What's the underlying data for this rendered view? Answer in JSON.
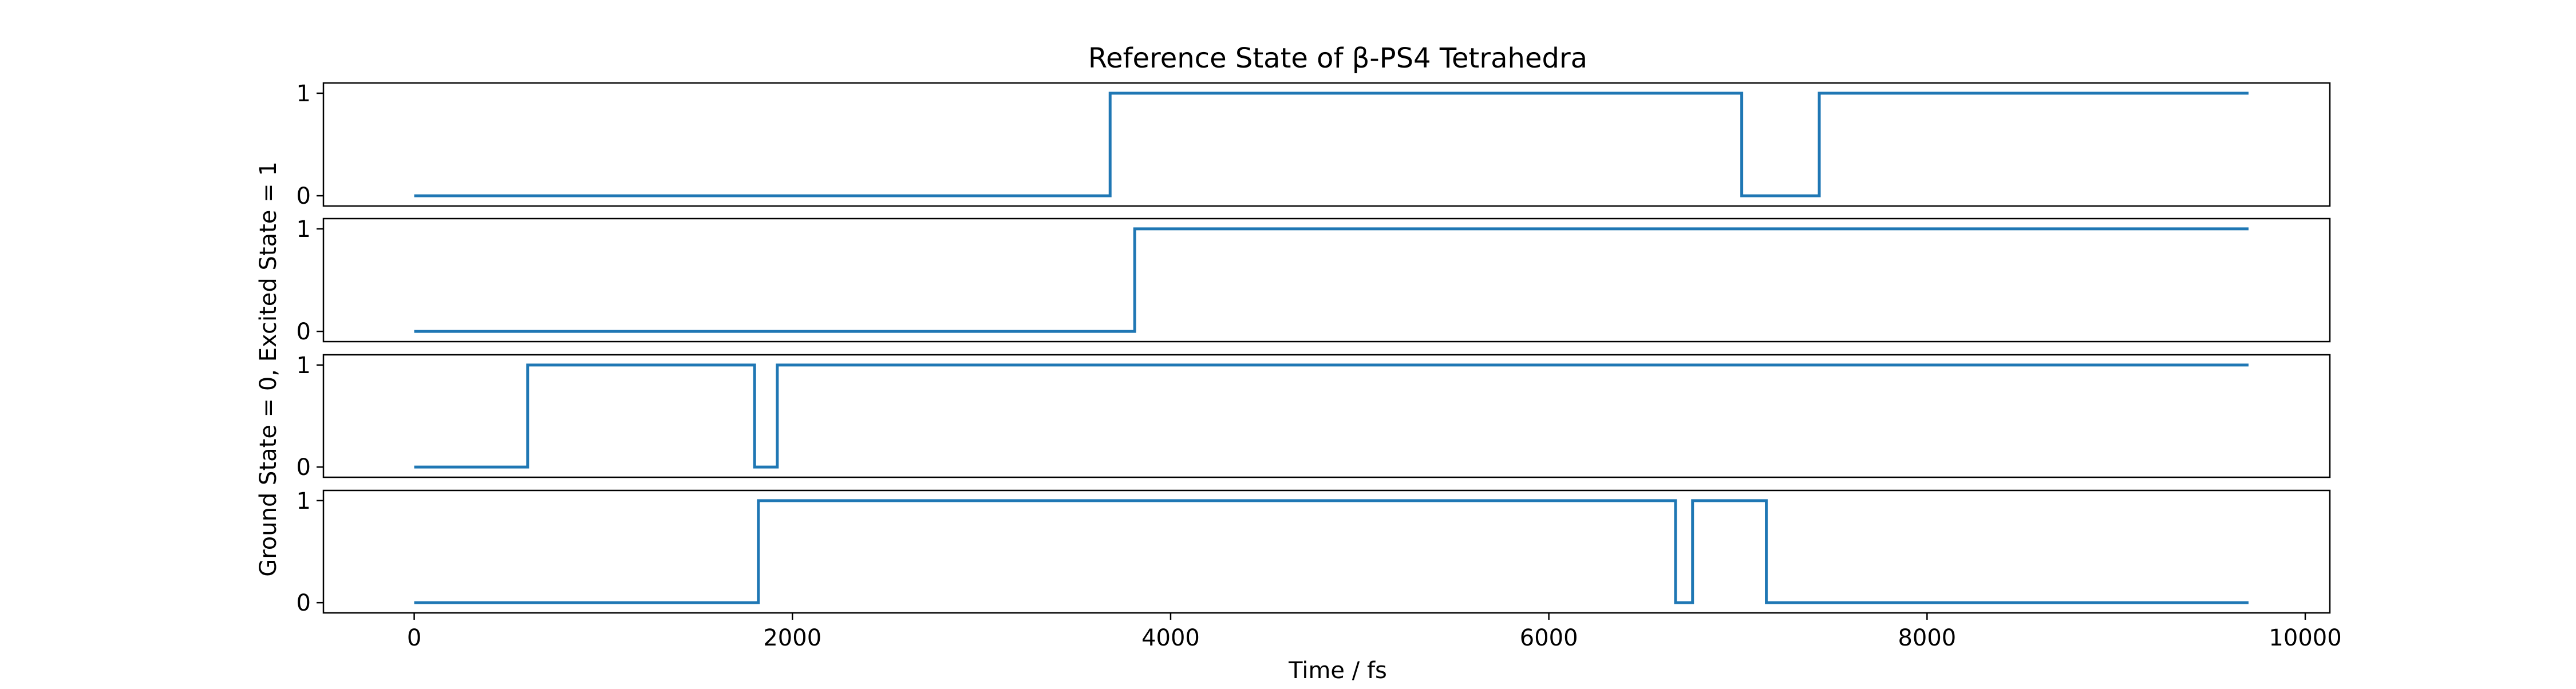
{
  "chart_data": {
    "type": "line",
    "step": true,
    "title": "Reference State of β-PS4 Tetrahedra",
    "xlabel": "Time / fs",
    "ylabel": "Ground State = 0, Excited State = 1",
    "xlim": [
      -480,
      10130
    ],
    "ylim": [
      -0.1,
      1.1
    ],
    "x_ticks": [
      0,
      2000,
      4000,
      6000,
      8000,
      10000
    ],
    "x_tick_labels": [
      "0",
      "2000",
      "4000",
      "6000",
      "8000",
      "10000"
    ],
    "y_ticks": [
      0,
      1
    ],
    "y_tick_labels": [
      "0",
      "1"
    ],
    "x_end": 9700,
    "line_color": "#1f77b4",
    "panels": [
      {
        "values": [
          {
            "x": 0,
            "y": 0
          },
          {
            "x": 3680,
            "y": 1
          },
          {
            "x": 7020,
            "y": 0
          },
          {
            "x": 7430,
            "y": 1
          }
        ]
      },
      {
        "values": [
          {
            "x": 0,
            "y": 0
          },
          {
            "x": 3810,
            "y": 1
          }
        ]
      },
      {
        "values": [
          {
            "x": 0,
            "y": 0
          },
          {
            "x": 600,
            "y": 1
          },
          {
            "x": 1800,
            "y": 0
          },
          {
            "x": 1920,
            "y": 1
          }
        ]
      },
      {
        "values": [
          {
            "x": 0,
            "y": 0
          },
          {
            "x": 1820,
            "y": 1
          },
          {
            "x": 6670,
            "y": 0
          },
          {
            "x": 6760,
            "y": 1
          },
          {
            "x": 7150,
            "y": 0
          }
        ]
      }
    ]
  }
}
